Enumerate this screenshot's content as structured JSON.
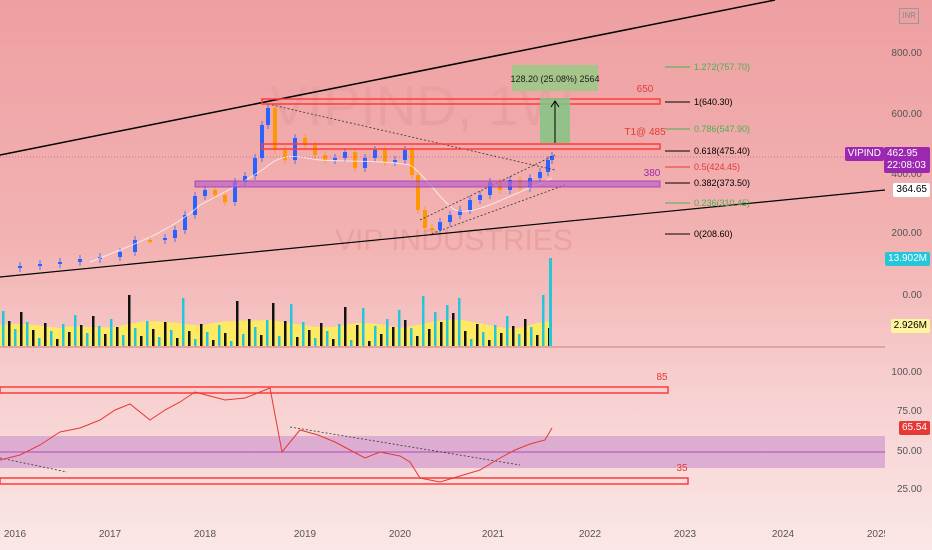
{
  "symbol": {
    "ticker": "VIPIND",
    "timeframe": "1W",
    "company": "VIP INDUSTRIES",
    "currency": "INR"
  },
  "price_axis": {
    "ticks": [
      "800.00",
      "600.00",
      "400.00",
      "200.00",
      "0.00"
    ],
    "last_price": "462.95",
    "countdown": "22:08:03",
    "support_level": "364.65",
    "volume_label": "13.902M",
    "volume_ma_label": "2.926M"
  },
  "rsi_axis": {
    "ticks": [
      "100.00",
      "75.00",
      "50.00",
      "25.00"
    ],
    "rsi_value": "65.54"
  },
  "time_axis": {
    "labels": [
      "2016",
      "2017",
      "2018",
      "2019",
      "2020",
      "2021",
      "2022",
      "2023",
      "2024",
      "2025"
    ]
  },
  "fibonacci": {
    "levels": [
      {
        "label": "1.272(757.70)",
        "color": "#4caf50"
      },
      {
        "label": "1(640.30)",
        "color": "#000000"
      },
      {
        "label": "0.786(547.90)",
        "color": "#4caf50"
      },
      {
        "label": "0.618(475.40)",
        "color": "#000000"
      },
      {
        "label": "0.5(424.45)",
        "color": "#e53935"
      },
      {
        "label": "0.382(373.50)",
        "color": "#000000"
      },
      {
        "label": "0.236(310.45)",
        "color": "#4caf50"
      },
      {
        "label": "0(208.60)",
        "color": "#000000"
      }
    ]
  },
  "annotations": {
    "measure": "128.20 (25.08%) 2564",
    "zone_650": "650",
    "target": "T1@ 485",
    "zone_380": "380",
    "rsi_upper": "85",
    "rsi_lower": "35"
  },
  "colors": {
    "candle_up": "#2962ff",
    "candle_down": "#ff9800",
    "zone_red": "#ff5252",
    "zone_purple": "#ab47bc",
    "volume_bar": "#26c6da",
    "volume_ma": "#ffeb3b",
    "rsi_line": "#ef5350",
    "rsi_band": "#ce93d8",
    "trendline": "#000000",
    "badge_symbol": "#9c27b0"
  }
}
